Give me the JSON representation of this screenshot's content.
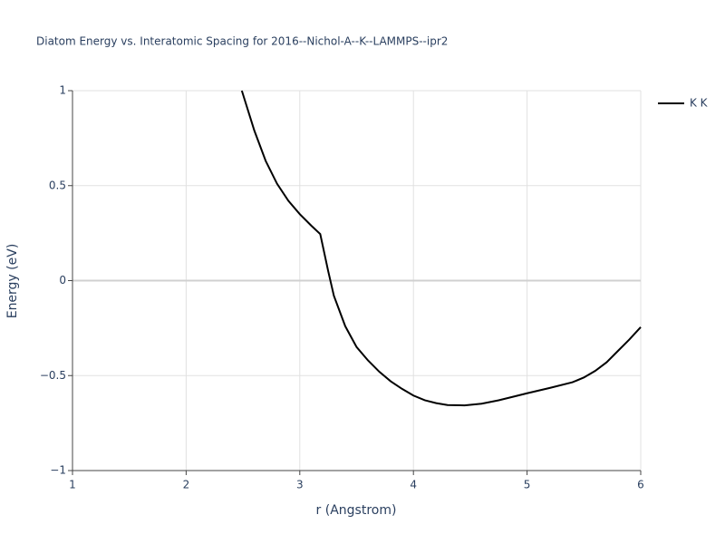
{
  "chart_data": {
    "type": "line",
    "title": "Diatom Energy vs. Interatomic Spacing for 2016--Nichol-A--K--LAMMPS--ipr2",
    "x_label": "r (Angstrom)",
    "y_label": "Energy (eV)",
    "x": [
      2.49,
      2.6,
      2.7,
      2.8,
      2.9,
      3.0,
      3.1,
      3.18,
      3.25,
      3.3,
      3.4,
      3.5,
      3.6,
      3.7,
      3.8,
      3.9,
      4.0,
      4.1,
      4.2,
      4.3,
      4.45,
      4.6,
      4.75,
      4.9,
      5.0,
      5.2,
      5.4,
      5.5,
      5.6,
      5.7,
      5.8,
      5.9,
      6.0
    ],
    "series": [
      {
        "name": "K K",
        "color": "#000000",
        "values": [
          1.0,
          0.79,
          0.63,
          0.51,
          0.42,
          0.35,
          0.29,
          0.245,
          0.05,
          -0.08,
          -0.24,
          -0.35,
          -0.42,
          -0.48,
          -0.53,
          -0.57,
          -0.605,
          -0.63,
          -0.645,
          -0.655,
          -0.657,
          -0.648,
          -0.63,
          -0.608,
          -0.593,
          -0.565,
          -0.535,
          -0.51,
          -0.475,
          -0.43,
          -0.37,
          -0.31,
          -0.245
        ]
      }
    ],
    "xlim": [
      1,
      6
    ],
    "ylim": [
      -1,
      1
    ],
    "xticks": [
      1,
      2,
      3,
      4,
      5,
      6
    ],
    "yticks": [
      {
        "value": -1,
        "label": "−1"
      },
      {
        "value": -0.5,
        "label": "−0.5"
      },
      0,
      0.5,
      1
    ],
    "grid": true
  }
}
